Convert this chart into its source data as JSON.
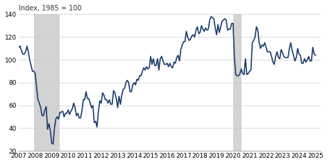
{
  "title": "Index, 1985 = 100",
  "ylim": [
    20,
    140
  ],
  "yticks": [
    20,
    40,
    60,
    80,
    100,
    120,
    140
  ],
  "xlim": [
    2007.0,
    2025.3
  ],
  "xticks": [
    2007,
    2008,
    2009,
    2010,
    2011,
    2012,
    2013,
    2014,
    2015,
    2016,
    2017,
    2018,
    2019,
    2020,
    2021,
    2022,
    2023,
    2024,
    2025
  ],
  "line_color": "#1a3a6b",
  "line_width": 1.2,
  "recession_1_start": 2007.917,
  "recession_1_end": 2009.5,
  "recession_2_start": 2020.0,
  "recession_2_end": 2020.5,
  "recession_color": "#d3d3d3",
  "background_color": "#ffffff",
  "grid_color": "#cccccc",
  "data": [
    [
      2007.0,
      111
    ],
    [
      2007.083,
      112
    ],
    [
      2007.167,
      108
    ],
    [
      2007.25,
      105
    ],
    [
      2007.333,
      105
    ],
    [
      2007.417,
      107
    ],
    [
      2007.5,
      112
    ],
    [
      2007.583,
      107
    ],
    [
      2007.667,
      100
    ],
    [
      2007.75,
      95
    ],
    [
      2007.833,
      90
    ],
    [
      2007.917,
      90
    ],
    [
      2008.0,
      88
    ],
    [
      2008.083,
      76
    ],
    [
      2008.167,
      65
    ],
    [
      2008.25,
      62
    ],
    [
      2008.333,
      58
    ],
    [
      2008.417,
      51
    ],
    [
      2008.5,
      51
    ],
    [
      2008.583,
      56
    ],
    [
      2008.667,
      59
    ],
    [
      2008.75,
      39
    ],
    [
      2008.833,
      44
    ],
    [
      2008.917,
      38
    ],
    [
      2009.0,
      27
    ],
    [
      2009.083,
      26
    ],
    [
      2009.167,
      40
    ],
    [
      2009.25,
      48
    ],
    [
      2009.333,
      50
    ],
    [
      2009.417,
      48
    ],
    [
      2009.5,
      54
    ],
    [
      2009.583,
      54
    ],
    [
      2009.667,
      55
    ],
    [
      2009.75,
      50
    ],
    [
      2009.833,
      53
    ],
    [
      2009.917,
      53
    ],
    [
      2010.0,
      56
    ],
    [
      2010.083,
      52
    ],
    [
      2010.167,
      55
    ],
    [
      2010.25,
      57
    ],
    [
      2010.333,
      62
    ],
    [
      2010.417,
      58
    ],
    [
      2010.5,
      51
    ],
    [
      2010.583,
      53
    ],
    [
      2010.667,
      49
    ],
    [
      2010.75,
      49
    ],
    [
      2010.833,
      55
    ],
    [
      2010.917,
      65
    ],
    [
      2011.0,
      65
    ],
    [
      2011.083,
      72
    ],
    [
      2011.167,
      66
    ],
    [
      2011.25,
      66
    ],
    [
      2011.333,
      62
    ],
    [
      2011.417,
      58
    ],
    [
      2011.5,
      60
    ],
    [
      2011.583,
      45
    ],
    [
      2011.667,
      46
    ],
    [
      2011.75,
      41
    ],
    [
      2011.833,
      55
    ],
    [
      2011.917,
      64
    ],
    [
      2012.0,
      62
    ],
    [
      2012.083,
      71
    ],
    [
      2012.167,
      69
    ],
    [
      2012.25,
      65
    ],
    [
      2012.333,
      65
    ],
    [
      2012.417,
      62
    ],
    [
      2012.5,
      65
    ],
    [
      2012.583,
      61
    ],
    [
      2012.667,
      61
    ],
    [
      2012.75,
      73
    ],
    [
      2012.833,
      71
    ],
    [
      2012.917,
      66
    ],
    [
      2013.0,
      58
    ],
    [
      2013.083,
      68
    ],
    [
      2013.167,
      61
    ],
    [
      2013.25,
      69
    ],
    [
      2013.333,
      74
    ],
    [
      2013.417,
      75
    ],
    [
      2013.5,
      80
    ],
    [
      2013.583,
      82
    ],
    [
      2013.667,
      80
    ],
    [
      2013.75,
      72
    ],
    [
      2013.833,
      72
    ],
    [
      2013.917,
      78
    ],
    [
      2014.0,
      80
    ],
    [
      2014.083,
      78
    ],
    [
      2014.167,
      83
    ],
    [
      2014.25,
      82
    ],
    [
      2014.333,
      86
    ],
    [
      2014.417,
      86
    ],
    [
      2014.5,
      90
    ],
    [
      2014.583,
      93
    ],
    [
      2014.667,
      91
    ],
    [
      2014.75,
      94
    ],
    [
      2014.833,
      92
    ],
    [
      2014.917,
      93
    ],
    [
      2015.0,
      103
    ],
    [
      2015.083,
      96
    ],
    [
      2015.167,
      101
    ],
    [
      2015.25,
      95
    ],
    [
      2015.333,
      95
    ],
    [
      2015.417,
      101
    ],
    [
      2015.5,
      91
    ],
    [
      2015.583,
      101
    ],
    [
      2015.667,
      103
    ],
    [
      2015.75,
      99
    ],
    [
      2015.833,
      96
    ],
    [
      2015.917,
      96
    ],
    [
      2016.0,
      97
    ],
    [
      2016.083,
      94
    ],
    [
      2016.167,
      97
    ],
    [
      2016.25,
      94
    ],
    [
      2016.333,
      93
    ],
    [
      2016.417,
      98
    ],
    [
      2016.5,
      97
    ],
    [
      2016.583,
      102
    ],
    [
      2016.667,
      104
    ],
    [
      2016.75,
      99
    ],
    [
      2016.833,
      109
    ],
    [
      2016.917,
      113
    ],
    [
      2017.0,
      116
    ],
    [
      2017.083,
      116
    ],
    [
      2017.167,
      125
    ],
    [
      2017.25,
      120
    ],
    [
      2017.333,
      117
    ],
    [
      2017.417,
      118
    ],
    [
      2017.5,
      121
    ],
    [
      2017.583,
      122
    ],
    [
      2017.667,
      120
    ],
    [
      2017.75,
      126
    ],
    [
      2017.833,
      129
    ],
    [
      2017.917,
      123
    ],
    [
      2018.0,
      124
    ],
    [
      2018.083,
      130
    ],
    [
      2018.167,
      127
    ],
    [
      2018.25,
      125
    ],
    [
      2018.333,
      128
    ],
    [
      2018.417,
      126
    ],
    [
      2018.5,
      127
    ],
    [
      2018.583,
      135
    ],
    [
      2018.667,
      138
    ],
    [
      2018.75,
      137
    ],
    [
      2018.833,
      136
    ],
    [
      2018.917,
      128
    ],
    [
      2019.0,
      122
    ],
    [
      2019.083,
      131
    ],
    [
      2019.167,
      124
    ],
    [
      2019.25,
      129
    ],
    [
      2019.333,
      134
    ],
    [
      2019.417,
      135
    ],
    [
      2019.5,
      136
    ],
    [
      2019.583,
      135
    ],
    [
      2019.667,
      126
    ],
    [
      2019.75,
      127
    ],
    [
      2019.833,
      127
    ],
    [
      2019.917,
      132
    ],
    [
      2020.0,
      132
    ],
    [
      2020.083,
      101
    ],
    [
      2020.167,
      87
    ],
    [
      2020.25,
      86
    ],
    [
      2020.333,
      86
    ],
    [
      2020.417,
      88
    ],
    [
      2020.5,
      92
    ],
    [
      2020.583,
      88
    ],
    [
      2020.667,
      87
    ],
    [
      2020.75,
      101
    ],
    [
      2020.833,
      87
    ],
    [
      2020.917,
      88
    ],
    [
      2021.0,
      90
    ],
    [
      2021.083,
      91
    ],
    [
      2021.167,
      115
    ],
    [
      2021.25,
      117
    ],
    [
      2021.333,
      120
    ],
    [
      2021.417,
      129
    ],
    [
      2021.5,
      126
    ],
    [
      2021.583,
      115
    ],
    [
      2021.667,
      110
    ],
    [
      2021.75,
      113
    ],
    [
      2021.833,
      112
    ],
    [
      2021.917,
      115
    ],
    [
      2022.0,
      111
    ],
    [
      2022.083,
      107
    ],
    [
      2022.167,
      107
    ],
    [
      2022.25,
      107
    ],
    [
      2022.333,
      103
    ],
    [
      2022.417,
      98
    ],
    [
      2022.5,
      96
    ],
    [
      2022.583,
      103
    ],
    [
      2022.667,
      107
    ],
    [
      2022.75,
      102
    ],
    [
      2022.833,
      101
    ],
    [
      2022.917,
      109
    ],
    [
      2023.0,
      106
    ],
    [
      2023.083,
      103
    ],
    [
      2023.167,
      102
    ],
    [
      2023.25,
      102
    ],
    [
      2023.333,
      102
    ],
    [
      2023.417,
      110
    ],
    [
      2023.5,
      115
    ],
    [
      2023.583,
      108
    ],
    [
      2023.667,
      104
    ],
    [
      2023.75,
      99
    ],
    [
      2023.833,
      102
    ],
    [
      2023.917,
      110
    ],
    [
      2024.0,
      105
    ],
    [
      2024.083,
      104
    ],
    [
      2024.167,
      97
    ],
    [
      2024.25,
      97
    ],
    [
      2024.333,
      101
    ],
    [
      2024.417,
      98
    ],
    [
      2024.5,
      100
    ],
    [
      2024.583,
      103
    ],
    [
      2024.667,
      99
    ],
    [
      2024.75,
      99
    ],
    [
      2024.833,
      111
    ],
    [
      2024.917,
      105
    ],
    [
      2025.0,
      104
    ]
  ]
}
